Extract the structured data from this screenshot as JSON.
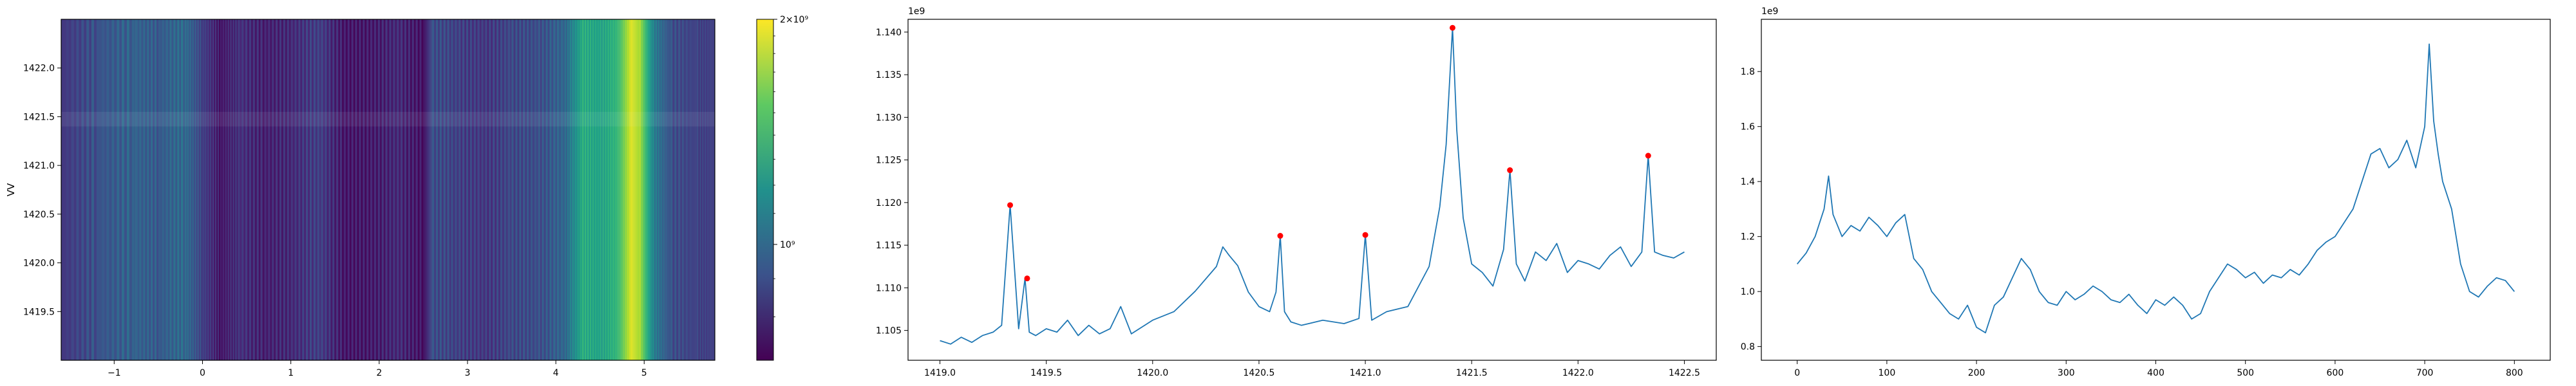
{
  "figure": {
    "background": "#ffffff"
  },
  "chart_data": [
    {
      "type": "heatmap",
      "title": "",
      "xlabel": "",
      "ylabel": "VV",
      "xlim": [
        -1.6,
        5.8
      ],
      "ylim": [
        1419.0,
        1422.5
      ],
      "xticks": [
        -1,
        0,
        1,
        2,
        3,
        4,
        5
      ],
      "xtick_labels": [
        "−1",
        "0",
        "1",
        "2",
        "3",
        "4",
        "5"
      ],
      "yticks": [
        1419.5,
        1420.0,
        1420.5,
        1421.0,
        1421.5,
        1422.0
      ],
      "ytick_labels": [
        "1419.5",
        "1420.0",
        "1420.5",
        "1421.0",
        "1421.5",
        "1422.0"
      ],
      "colormap": "viridis",
      "colorbar": {
        "scale": "log",
        "range": [
          700000000,
          2000000000
        ],
        "ticks": [
          1000000000,
          2000000000
        ],
        "tick_labels": [
          "10⁹",
          "2×10⁹"
        ]
      },
      "column_profile": [
        [
          -1.6,
          1.02
        ],
        [
          -1.2,
          1.12
        ],
        [
          -0.8,
          1.18
        ],
        [
          -0.5,
          1.15
        ],
        [
          -0.2,
          1.22
        ],
        [
          0.0,
          1.05
        ],
        [
          0.2,
          0.92
        ],
        [
          0.4,
          1.0
        ],
        [
          0.7,
          0.95
        ],
        [
          1.0,
          0.98
        ],
        [
          1.3,
          1.05
        ],
        [
          1.6,
          0.92
        ],
        [
          1.9,
          0.93
        ],
        [
          2.2,
          0.98
        ],
        [
          2.5,
          0.9
        ],
        [
          2.6,
          1.1
        ],
        [
          2.9,
          1.05
        ],
        [
          3.2,
          1.02
        ],
        [
          3.5,
          1.08
        ],
        [
          3.8,
          1.1
        ],
        [
          4.1,
          1.2
        ],
        [
          4.3,
          1.5
        ],
        [
          4.5,
          1.45
        ],
        [
          4.7,
          1.55
        ],
        [
          4.85,
          1.85
        ],
        [
          4.95,
          1.75
        ],
        [
          5.1,
          1.3
        ],
        [
          5.3,
          1.1
        ],
        [
          5.6,
          1.05
        ],
        [
          5.8,
          1.05
        ]
      ]
    },
    {
      "type": "line",
      "title": "",
      "xlabel": "",
      "ylabel": "",
      "offset_label": "1e9",
      "line_color": "#1f77b4",
      "marker_color": "#ff0000",
      "xlim": [
        1418.85,
        1422.65
      ],
      "ylim": [
        1.1015,
        1.1415
      ],
      "xticks": [
        1419.0,
        1419.5,
        1420.0,
        1420.5,
        1421.0,
        1421.5,
        1422.0,
        1422.5
      ],
      "xtick_labels": [
        "1419.0",
        "1419.5",
        "1420.0",
        "1420.5",
        "1421.0",
        "1421.5",
        "1422.0",
        "1422.5"
      ],
      "yticks": [
        1.105,
        1.11,
        1.115,
        1.12,
        1.125,
        1.13,
        1.135,
        1.14
      ],
      "ytick_labels": [
        "1.105",
        "1.110",
        "1.115",
        "1.120",
        "1.125",
        "1.130",
        "1.135",
        "1.140"
      ],
      "series": [
        {
          "x": [
            1419.0,
            1419.05,
            1419.1,
            1419.15,
            1419.2,
            1419.25,
            1419.29,
            1419.33,
            1419.37,
            1419.4,
            1419.42,
            1419.45,
            1419.5,
            1419.55,
            1419.6,
            1419.65,
            1419.7,
            1419.75,
            1419.8,
            1419.85,
            1419.9,
            1420.0,
            1420.1,
            1420.2,
            1420.3,
            1420.33,
            1420.36,
            1420.4,
            1420.45,
            1420.5,
            1420.55,
            1420.58,
            1420.6,
            1420.62,
            1420.65,
            1420.7,
            1420.8,
            1420.9,
            1420.97,
            1421.0,
            1421.03,
            1421.1,
            1421.2,
            1421.3,
            1421.35,
            1421.38,
            1421.41,
            1421.43,
            1421.46,
            1421.5,
            1421.55,
            1421.6,
            1421.65,
            1421.68,
            1421.71,
            1421.75,
            1421.8,
            1421.85,
            1421.9,
            1421.95,
            1422.0,
            1422.05,
            1422.1,
            1422.15,
            1422.2,
            1422.25,
            1422.3,
            1422.33,
            1422.36,
            1422.4,
            1422.45,
            1422.5
          ],
          "y": [
            1.1038,
            1.1034,
            1.1042,
            1.1036,
            1.1044,
            1.1048,
            1.1056,
            1.1197,
            1.1052,
            1.1111,
            1.1048,
            1.1044,
            1.1052,
            1.1048,
            1.1062,
            1.1044,
            1.1056,
            1.1046,
            1.1052,
            1.1078,
            1.1046,
            1.1062,
            1.1072,
            1.1096,
            1.1125,
            1.1148,
            1.1138,
            1.1126,
            1.1095,
            1.1078,
            1.1072,
            1.1095,
            1.1161,
            1.1072,
            1.106,
            1.1056,
            1.1062,
            1.1058,
            1.1064,
            1.1162,
            1.1062,
            1.1072,
            1.1078,
            1.1125,
            1.1195,
            1.1268,
            1.1405,
            1.1285,
            1.1182,
            1.1128,
            1.1118,
            1.1102,
            1.1145,
            1.1238,
            1.1128,
            1.1108,
            1.1142,
            1.1132,
            1.1152,
            1.1118,
            1.1132,
            1.1128,
            1.1122,
            1.1138,
            1.1148,
            1.1125,
            1.1142,
            1.1255,
            1.1142,
            1.1138,
            1.1135,
            1.1142
          ]
        }
      ],
      "peaks": [
        {
          "x": 1419.33,
          "y": 1.1197
        },
        {
          "x": 1419.41,
          "y": 1.1111
        },
        {
          "x": 1420.6,
          "y": 1.1161
        },
        {
          "x": 1421.0,
          "y": 1.1162
        },
        {
          "x": 1421.41,
          "y": 1.1405
        },
        {
          "x": 1421.68,
          "y": 1.1238
        },
        {
          "x": 1422.33,
          "y": 1.1255
        }
      ]
    },
    {
      "type": "line",
      "title": "",
      "xlabel": "",
      "ylabel": "",
      "offset_label": "1e9",
      "line_color": "#1f77b4",
      "xlim": [
        -40,
        840
      ],
      "ylim": [
        0.75,
        1.99
      ],
      "xticks": [
        0,
        100,
        200,
        300,
        400,
        500,
        600,
        700,
        800
      ],
      "xtick_labels": [
        "0",
        "100",
        "200",
        "300",
        "400",
        "500",
        "600",
        "700",
        "800"
      ],
      "yticks": [
        0.8,
        1.0,
        1.2,
        1.4,
        1.6,
        1.8
      ],
      "ytick_labels": [
        "0.8",
        "1.0",
        "1.2",
        "1.4",
        "1.6",
        "1.8"
      ],
      "series": [
        {
          "x": [
            0,
            10,
            20,
            30,
            35,
            40,
            50,
            60,
            70,
            80,
            90,
            100,
            110,
            120,
            130,
            140,
            150,
            160,
            170,
            180,
            190,
            200,
            210,
            220,
            230,
            240,
            250,
            260,
            270,
            280,
            290,
            300,
            310,
            320,
            330,
            340,
            350,
            360,
            370,
            380,
            390,
            400,
            410,
            420,
            430,
            440,
            450,
            460,
            470,
            480,
            490,
            500,
            510,
            520,
            530,
            540,
            550,
            560,
            570,
            580,
            590,
            600,
            610,
            620,
            630,
            640,
            650,
            660,
            670,
            680,
            690,
            700,
            705,
            710,
            715,
            720,
            730,
            740,
            750,
            760,
            770,
            780,
            790,
            800
          ],
          "y": [
            1.1,
            1.14,
            1.2,
            1.3,
            1.42,
            1.28,
            1.2,
            1.24,
            1.22,
            1.27,
            1.24,
            1.2,
            1.25,
            1.28,
            1.12,
            1.08,
            1.0,
            0.96,
            0.92,
            0.9,
            0.95,
            0.87,
            0.85,
            0.95,
            0.98,
            1.05,
            1.12,
            1.08,
            1.0,
            0.96,
            0.95,
            1.0,
            0.97,
            0.99,
            1.02,
            1.0,
            0.97,
            0.96,
            0.99,
            0.95,
            0.92,
            0.97,
            0.95,
            0.98,
            0.95,
            0.9,
            0.92,
            1.0,
            1.05,
            1.1,
            1.08,
            1.05,
            1.07,
            1.03,
            1.06,
            1.05,
            1.08,
            1.06,
            1.1,
            1.15,
            1.18,
            1.2,
            1.25,
            1.3,
            1.4,
            1.5,
            1.52,
            1.45,
            1.48,
            1.55,
            1.45,
            1.6,
            1.9,
            1.62,
            1.5,
            1.4,
            1.3,
            1.1,
            1.0,
            0.98,
            1.02,
            1.05,
            1.04,
            1.0
          ]
        }
      ]
    }
  ]
}
